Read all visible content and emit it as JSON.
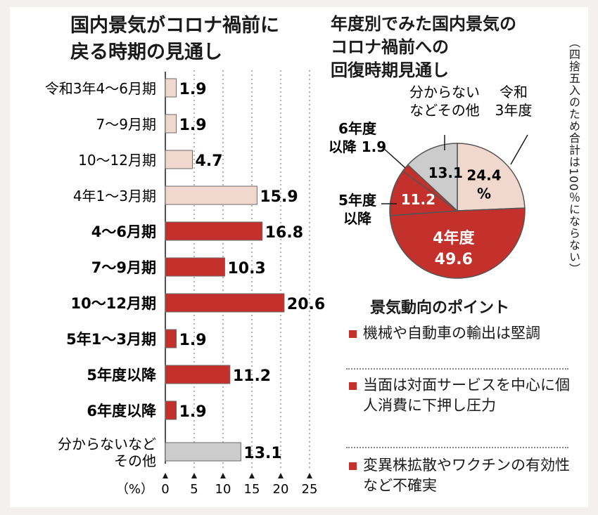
{
  "bar_title": "国内景気がコロナ禍前に\n戻る時期の見通し",
  "pie_title": "年度別でみた国内景気の\nコロナ禍前への\n回復時期見通し",
  "pie_note": "（四捨五入のため合計は100％にならない）",
  "points": {
    "heading": "景気動向のポイント",
    "items": [
      "機械や自動車の輸出は堅調",
      "当面は対面サービスを中心に個人消費に下押し圧力",
      "変異株拡散やワクチンの有効性など不確実"
    ]
  },
  "colors": {
    "red": "#c4302b",
    "pink": "#f1d8cf",
    "gray": "#cccccc",
    "background": "#f3f0ee"
  },
  "chart_data": [
    {
      "type": "bar",
      "orientation": "horizontal",
      "categories": [
        "令和3年4〜6月期",
        "7〜9月期",
        "10〜12月期",
        "4年1〜3月期",
        "4〜6月期",
        "7〜9月期",
        "10〜12月期",
        "5年1〜3月期",
        "5年度以降",
        "6年度以降",
        "分からないなど\nその他"
      ],
      "values": [
        1.9,
        1.9,
        4.7,
        15.9,
        16.8,
        10.3,
        20.6,
        1.9,
        11.2,
        1.9,
        13.1
      ],
      "value_labels": [
        "1.9",
        "1.9",
        "4.7",
        "15.9",
        "16.8",
        "10.3",
        "20.6",
        "1.9",
        "11.2",
        "1.9",
        "13.1"
      ],
      "bar_colors": [
        "pink",
        "pink",
        "pink",
        "pink",
        "red",
        "red",
        "red",
        "red",
        "red",
        "red",
        "gray"
      ],
      "bold_labels": [
        false,
        false,
        false,
        false,
        true,
        true,
        true,
        true,
        true,
        true,
        false
      ],
      "xlabel": "（%）",
      "xticks": [
        0,
        5,
        10,
        15,
        20,
        25
      ],
      "xlim": [
        0,
        25
      ],
      "grid": "vertical-dotted"
    },
    {
      "type": "pie",
      "slices": [
        {
          "label": "令和\n3年度",
          "value": 24.4,
          "value_label": "24.4\n%",
          "color": "pink"
        },
        {
          "label": "4年度",
          "value": 49.6,
          "value_label": "4年度\n49.6",
          "color": "red"
        },
        {
          "label": "5年度\n以降",
          "value": 11.2,
          "value_label": "11.2",
          "color": "red"
        },
        {
          "label": "6年度\n以降 1.9",
          "value": 1.9,
          "value_label": "",
          "color": "red"
        },
        {
          "label": "分からない\nなどその他",
          "value": 13.1,
          "value_label": "13.1",
          "color": "gray"
        }
      ]
    }
  ]
}
